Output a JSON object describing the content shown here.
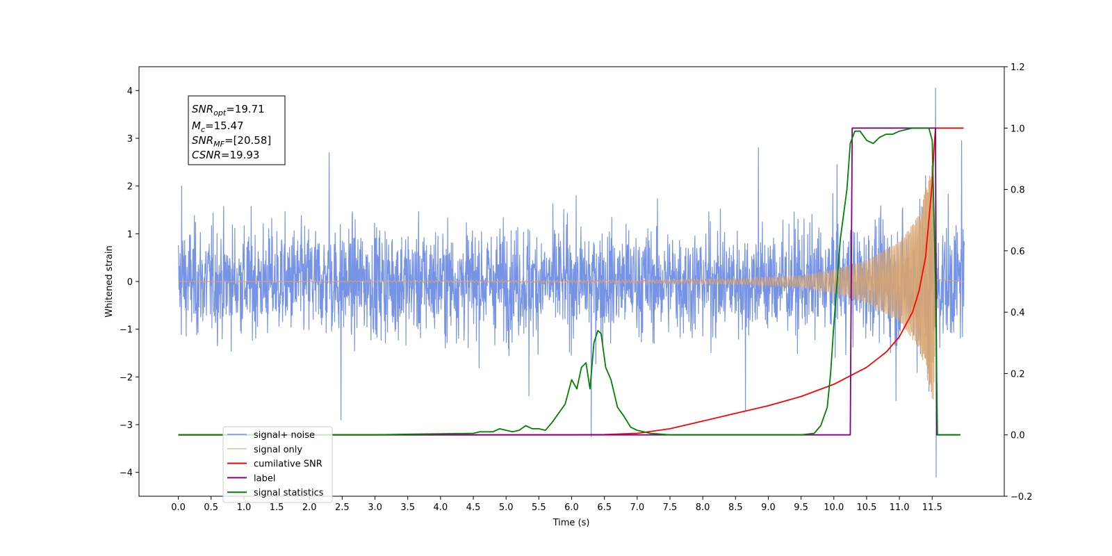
{
  "chart_data": {
    "type": "line",
    "xlabel": "Time (s)",
    "ylabel": "Whitened strain",
    "xlim": [
      -0.6,
      12.6
    ],
    "ylim": [
      -4.5,
      4.5
    ],
    "y2lim": [
      -0.2,
      1.2
    ],
    "x_ticks": [
      "0.0",
      "0.5",
      "1.0",
      "1.5",
      "2.0",
      "2.5",
      "3.0",
      "3.5",
      "4.0",
      "4.5",
      "5.0",
      "5.5",
      "6.0",
      "6.5",
      "7.0",
      "7.5",
      "8.0",
      "8.5",
      "9.0",
      "9.5",
      "10.0",
      "10.5",
      "11.0",
      "11.5"
    ],
    "y_ticks": [
      "4",
      "3",
      "2",
      "1",
      "0",
      "−1",
      "−2",
      "−3",
      "−4"
    ],
    "y2_ticks": [
      "1.2",
      "1.0",
      "0.8",
      "0.6",
      "0.4",
      "0.2",
      "0.0",
      "−0.2"
    ],
    "grid": false,
    "legend_position": "lower-left",
    "annotation": {
      "lines": [
        {
          "main": "SNR",
          "sub": "opt",
          "value": "=19.71"
        },
        {
          "main": "M",
          "sub": "c",
          "value": "=15.47"
        },
        {
          "main": "SNR",
          "sub": "MF",
          "value": "=[20.58]"
        },
        {
          "main": "CSNR",
          "sub": "",
          "value": "=19.93"
        }
      ]
    },
    "series": [
      {
        "name": "signal+ noise",
        "axis": "left",
        "color": "#7793e6",
        "noise_envelope": [
          [
            0.0,
            1.3
          ],
          [
            9.9,
            1.3
          ],
          [
            10.5,
            1.35
          ],
          [
            11.0,
            1.5
          ],
          [
            11.3,
            1.8
          ],
          [
            11.45,
            2.4
          ],
          [
            11.55,
            1.6
          ],
          [
            12.0,
            1.3
          ]
        ],
        "peaks": [
          [
            11.55,
            4.05
          ],
          [
            11.56,
            -4.1
          ],
          [
            11.5,
            2.35
          ],
          [
            11.45,
            -2.3
          ],
          [
            2.48,
            -2.9
          ],
          [
            2.3,
            2.7
          ],
          [
            8.85,
            2.8
          ],
          [
            8.65,
            -2.7
          ],
          [
            10.05,
            2.45
          ],
          [
            10.95,
            -2.5
          ],
          [
            6.3,
            -3.25
          ],
          [
            5.35,
            -2.4
          ],
          [
            0.05,
            2.0
          ],
          [
            11.95,
            2.95
          ]
        ]
      },
      {
        "name": "signal only",
        "axis": "left",
        "color": "#d7a46e",
        "amplitude": [
          [
            0.0,
            0.0
          ],
          [
            7.0,
            0.03
          ],
          [
            8.5,
            0.06
          ],
          [
            9.5,
            0.12
          ],
          [
            10.0,
            0.25
          ],
          [
            10.5,
            0.45
          ],
          [
            11.0,
            0.85
          ],
          [
            11.3,
            1.4
          ],
          [
            11.45,
            2.2
          ],
          [
            11.52,
            2.6
          ],
          [
            11.56,
            0.05
          ],
          [
            12.0,
            0.0
          ]
        ]
      },
      {
        "name": "cumilative SNR",
        "axis": "right",
        "color": "#ff0000",
        "points": [
          [
            0.0,
            0.0
          ],
          [
            6.0,
            0.0
          ],
          [
            6.5,
            0.001
          ],
          [
            7.0,
            0.005
          ],
          [
            7.5,
            0.02
          ],
          [
            8.0,
            0.045
          ],
          [
            8.5,
            0.07
          ],
          [
            9.0,
            0.095
          ],
          [
            9.5,
            0.125
          ],
          [
            10.0,
            0.165
          ],
          [
            10.5,
            0.22
          ],
          [
            10.8,
            0.27
          ],
          [
            11.0,
            0.32
          ],
          [
            11.2,
            0.4
          ],
          [
            11.3,
            0.47
          ],
          [
            11.4,
            0.58
          ],
          [
            11.45,
            0.7
          ],
          [
            11.5,
            0.82
          ],
          [
            11.53,
            0.94
          ],
          [
            11.55,
            1.0
          ],
          [
            11.98,
            1.0
          ]
        ]
      },
      {
        "name": "label",
        "axis": "right",
        "color": "#800080",
        "points": [
          [
            0.0,
            0.0
          ],
          [
            10.25,
            0.0
          ],
          [
            10.28,
            1.0
          ],
          [
            11.55,
            1.0
          ],
          [
            11.57,
            0.0
          ],
          [
            11.93,
            0.0
          ]
        ]
      },
      {
        "name": "signal statistics",
        "axis": "right",
        "color": "#008000",
        "points": [
          [
            0.0,
            0.0
          ],
          [
            3.0,
            0.0
          ],
          [
            3.5,
            0.002
          ],
          [
            4.5,
            0.005
          ],
          [
            4.6,
            0.01
          ],
          [
            4.8,
            0.01
          ],
          [
            4.9,
            0.02
          ],
          [
            5.0,
            0.015
          ],
          [
            5.1,
            0.01
          ],
          [
            5.2,
            0.015
          ],
          [
            5.3,
            0.03
          ],
          [
            5.4,
            0.02
          ],
          [
            5.5,
            0.02
          ],
          [
            5.6,
            0.015
          ],
          [
            5.7,
            0.04
          ],
          [
            5.8,
            0.07
          ],
          [
            5.9,
            0.1
          ],
          [
            6.0,
            0.18
          ],
          [
            6.08,
            0.15
          ],
          [
            6.15,
            0.22
          ],
          [
            6.22,
            0.235
          ],
          [
            6.28,
            0.15
          ],
          [
            6.34,
            0.3
          ],
          [
            6.4,
            0.34
          ],
          [
            6.45,
            0.33
          ],
          [
            6.52,
            0.22
          ],
          [
            6.6,
            0.18
          ],
          [
            6.7,
            0.09
          ],
          [
            6.8,
            0.06
          ],
          [
            6.9,
            0.025
          ],
          [
            7.0,
            0.015
          ],
          [
            7.2,
            0.005
          ],
          [
            7.5,
            0.0
          ],
          [
            9.5,
            0.0
          ],
          [
            9.7,
            0.005
          ],
          [
            9.8,
            0.03
          ],
          [
            9.9,
            0.09
          ],
          [
            9.95,
            0.2
          ],
          [
            10.0,
            0.36
          ],
          [
            10.05,
            0.5
          ],
          [
            10.1,
            0.64
          ],
          [
            10.2,
            0.8
          ],
          [
            10.25,
            0.95
          ],
          [
            10.32,
            0.99
          ],
          [
            10.4,
            0.99
          ],
          [
            10.5,
            0.96
          ],
          [
            10.6,
            0.95
          ],
          [
            10.7,
            0.97
          ],
          [
            10.8,
            0.98
          ],
          [
            10.9,
            0.98
          ],
          [
            11.0,
            0.99
          ],
          [
            11.2,
            1.0
          ],
          [
            11.45,
            1.0
          ],
          [
            11.5,
            0.96
          ],
          [
            11.55,
            0.5
          ],
          [
            11.58,
            0.0
          ],
          [
            11.93,
            0.0
          ]
        ]
      }
    ]
  }
}
